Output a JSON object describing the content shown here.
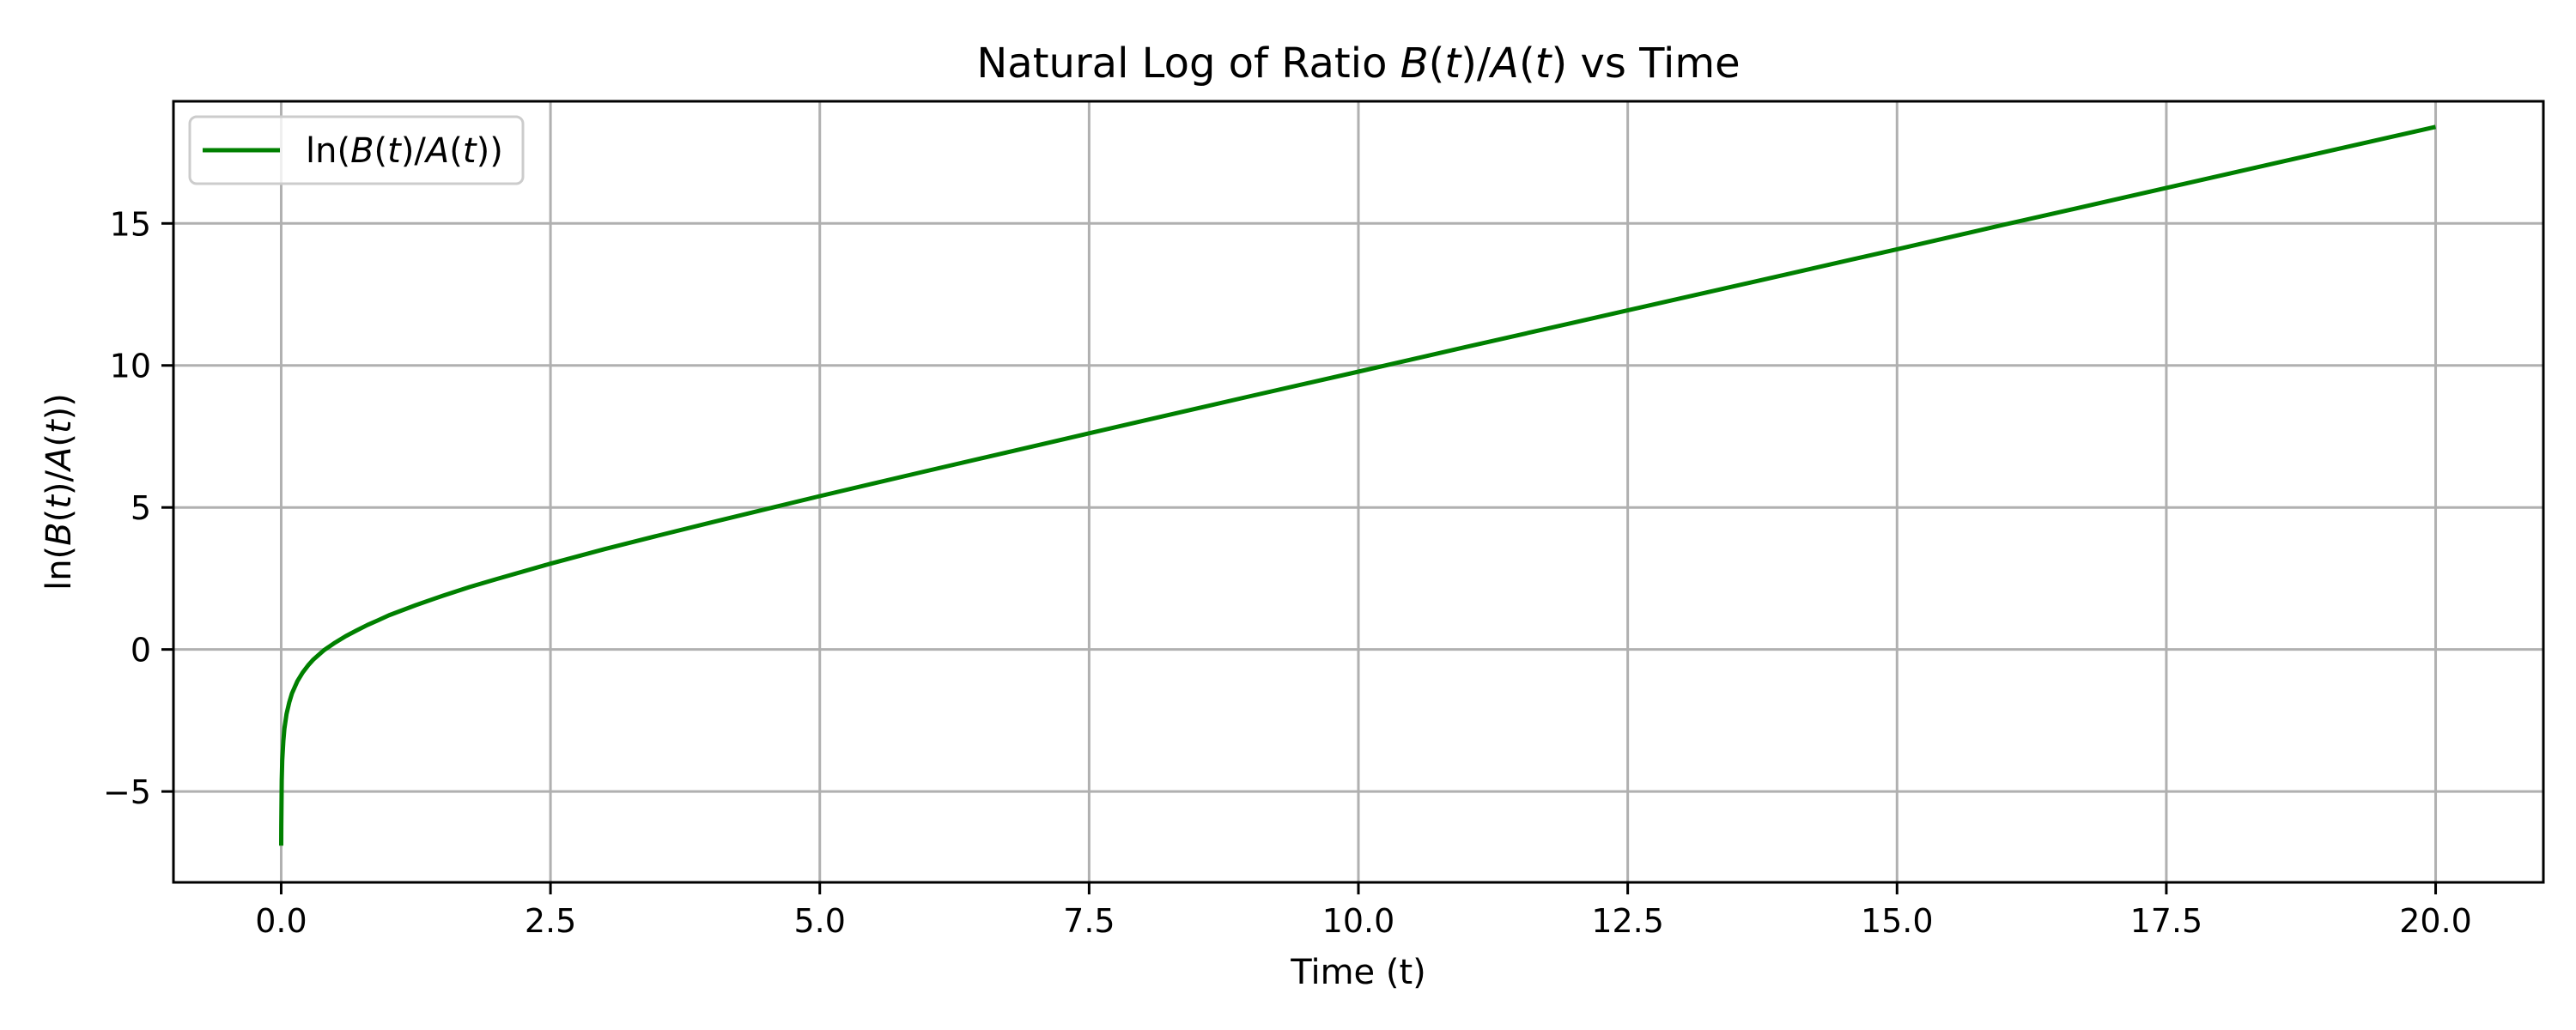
{
  "chart_data": {
    "type": "line",
    "title_parts": [
      {
        "text": "Natural Log of Ratio ",
        "italic": false
      },
      {
        "text": "B",
        "italic": true
      },
      {
        "text": "(",
        "italic": false
      },
      {
        "text": "t",
        "italic": true
      },
      {
        "text": ")/",
        "italic": false
      },
      {
        "text": "A",
        "italic": true
      },
      {
        "text": "(",
        "italic": false
      },
      {
        "text": "t",
        "italic": true
      },
      {
        "text": ") vs Time",
        "italic": false
      }
    ],
    "xlabel": "Time (t)",
    "ylabel_parts": [
      {
        "text": "ln(",
        "italic": false
      },
      {
        "text": "B",
        "italic": true
      },
      {
        "text": "(",
        "italic": false
      },
      {
        "text": "t",
        "italic": true
      },
      {
        "text": ")/",
        "italic": false
      },
      {
        "text": "A",
        "italic": true
      },
      {
        "text": "(",
        "italic": false
      },
      {
        "text": "t",
        "italic": true
      },
      {
        "text": "))",
        "italic": false
      }
    ],
    "xlim": [
      -1.0,
      21.0
    ],
    "ylim": [
      -8.2,
      19.3
    ],
    "x_ticks": [
      0.0,
      2.5,
      5.0,
      7.5,
      10.0,
      12.5,
      15.0,
      17.5,
      20.0
    ],
    "x_tick_labels": [
      "0.0",
      "2.5",
      "5.0",
      "7.5",
      "10.0",
      "12.5",
      "15.0",
      "17.5",
      "20.0"
    ],
    "y_ticks": [
      -5,
      0,
      5,
      10,
      15
    ],
    "y_tick_labels": [
      "−5",
      "0",
      "5",
      "10",
      "15"
    ],
    "grid": true,
    "legend_position": "top-left",
    "series": [
      {
        "name_parts": [
          {
            "text": "ln(",
            "italic": false
          },
          {
            "text": "B",
            "italic": true
          },
          {
            "text": "(",
            "italic": false
          },
          {
            "text": "t",
            "italic": true
          },
          {
            "text": ")/",
            "italic": false
          },
          {
            "text": "A",
            "italic": true
          },
          {
            "text": "(",
            "italic": false
          },
          {
            "text": "t",
            "italic": true
          },
          {
            "text": "))",
            "italic": false
          }
        ],
        "color": "#008000",
        "x": [
          0.0,
          0.001,
          0.005,
          0.01,
          0.02,
          0.03,
          0.05,
          0.075,
          0.1,
          0.15,
          0.2,
          0.25,
          0.3,
          0.4,
          0.5,
          0.6,
          0.7,
          0.8,
          0.9,
          1.0,
          1.25,
          1.5,
          1.75,
          2.0,
          2.5,
          3.0,
          3.5,
          4.0,
          4.5,
          5.0,
          6.0,
          7.0,
          8.0,
          9.0,
          10.0,
          11.0,
          12.0,
          13.0,
          14.0,
          15.0,
          16.0,
          17.0,
          18.0,
          19.0,
          20.0
        ],
        "y": [
          -6.91,
          -6.21,
          -4.6,
          -3.9,
          -3.21,
          -2.79,
          -2.27,
          -1.86,
          -1.55,
          -1.12,
          -0.81,
          -0.56,
          -0.35,
          -0.02,
          0.24,
          0.47,
          0.67,
          0.86,
          1.03,
          1.2,
          1.56,
          1.89,
          2.2,
          2.48,
          3.02,
          3.53,
          4.01,
          4.48,
          4.94,
          5.4,
          6.29,
          7.17,
          8.05,
          8.92,
          9.78,
          10.65,
          11.51,
          12.37,
          13.23,
          14.09,
          14.96,
          15.82,
          16.68,
          17.54,
          18.4
        ]
      }
    ]
  }
}
